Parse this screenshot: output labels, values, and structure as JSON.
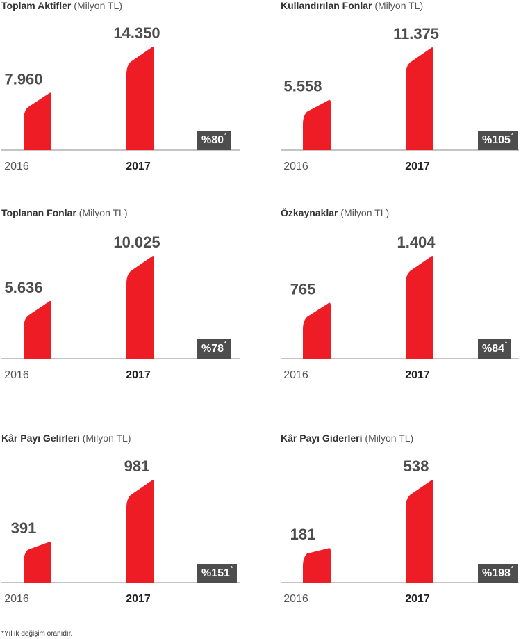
{
  "accent_color": "#ee1c25",
  "badge_color": "#4d4d4d",
  "footnote": "*Yıllık değişim oranıdır.",
  "chart_data": [
    {
      "type": "bar",
      "title": "Toplam Aktifler",
      "unit": "(Milyon TL)",
      "categories": [
        "2016",
        "2017"
      ],
      "values": [
        7960,
        14350
      ],
      "value_labels": [
        "7.960",
        "14.350"
      ],
      "change": "%80",
      "change_mark": "*"
    },
    {
      "type": "bar",
      "title": "Kullandırılan Fonlar",
      "unit": "(Milyon TL)",
      "categories": [
        "2016",
        "2017"
      ],
      "values": [
        5558,
        11375
      ],
      "value_labels": [
        "5.558",
        "11.375"
      ],
      "change": "%105",
      "change_mark": "*"
    },
    {
      "type": "bar",
      "title": "Toplanan Fonlar",
      "unit": "(Milyon TL)",
      "categories": [
        "2016",
        "2017"
      ],
      "values": [
        5636,
        10025
      ],
      "value_labels": [
        "5.636",
        "10.025"
      ],
      "change": "%78",
      "change_mark": "*"
    },
    {
      "type": "bar",
      "title": "Özkaynaklar",
      "unit": "(Milyon TL)",
      "categories": [
        "2016",
        "2017"
      ],
      "values": [
        765,
        1404
      ],
      "value_labels": [
        "765",
        "1.404"
      ],
      "change": "%84",
      "change_mark": "*"
    },
    {
      "type": "bar",
      "title": "Kâr Payı Gelirleri",
      "unit": "(Milyon TL)",
      "categories": [
        "2016",
        "2017"
      ],
      "values": [
        391,
        981
      ],
      "value_labels": [
        "391",
        "981"
      ],
      "change": "%151",
      "change_mark": "*"
    },
    {
      "type": "bar",
      "title": "Kâr Payı Giderleri",
      "unit": "(Milyon TL)",
      "categories": [
        "2016",
        "2017"
      ],
      "values": [
        181,
        538
      ],
      "value_labels": [
        "181",
        "538"
      ],
      "change": "%198",
      "change_mark": "*"
    }
  ]
}
